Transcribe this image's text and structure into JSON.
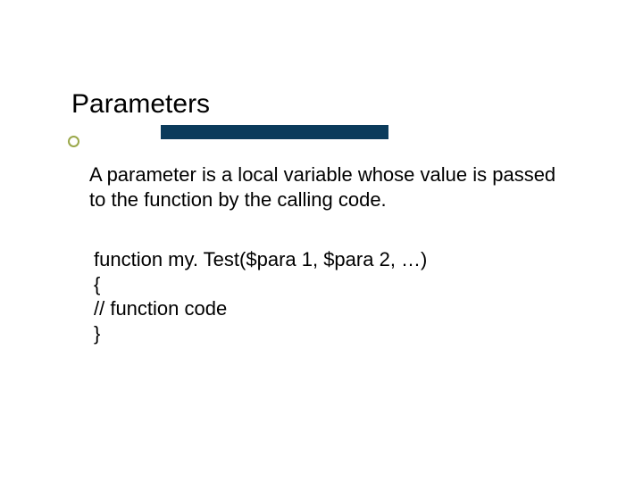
{
  "slide": {
    "title": "Parameters",
    "description": " A parameter is a local variable whose value is passed to the function by the calling code.",
    "code": {
      "line1": "function my. Test($para 1, $para 2, …)",
      "line2": "{",
      "line3": "// function code",
      "line4": "}"
    }
  },
  "style": {
    "title_fontsize": 30,
    "body_fontsize": 22,
    "title_color": "#000000",
    "body_color": "#000000",
    "bar_color": "#0b3b5b",
    "bullet_border_color": "#9aa84a",
    "background_color": "#ffffff"
  }
}
